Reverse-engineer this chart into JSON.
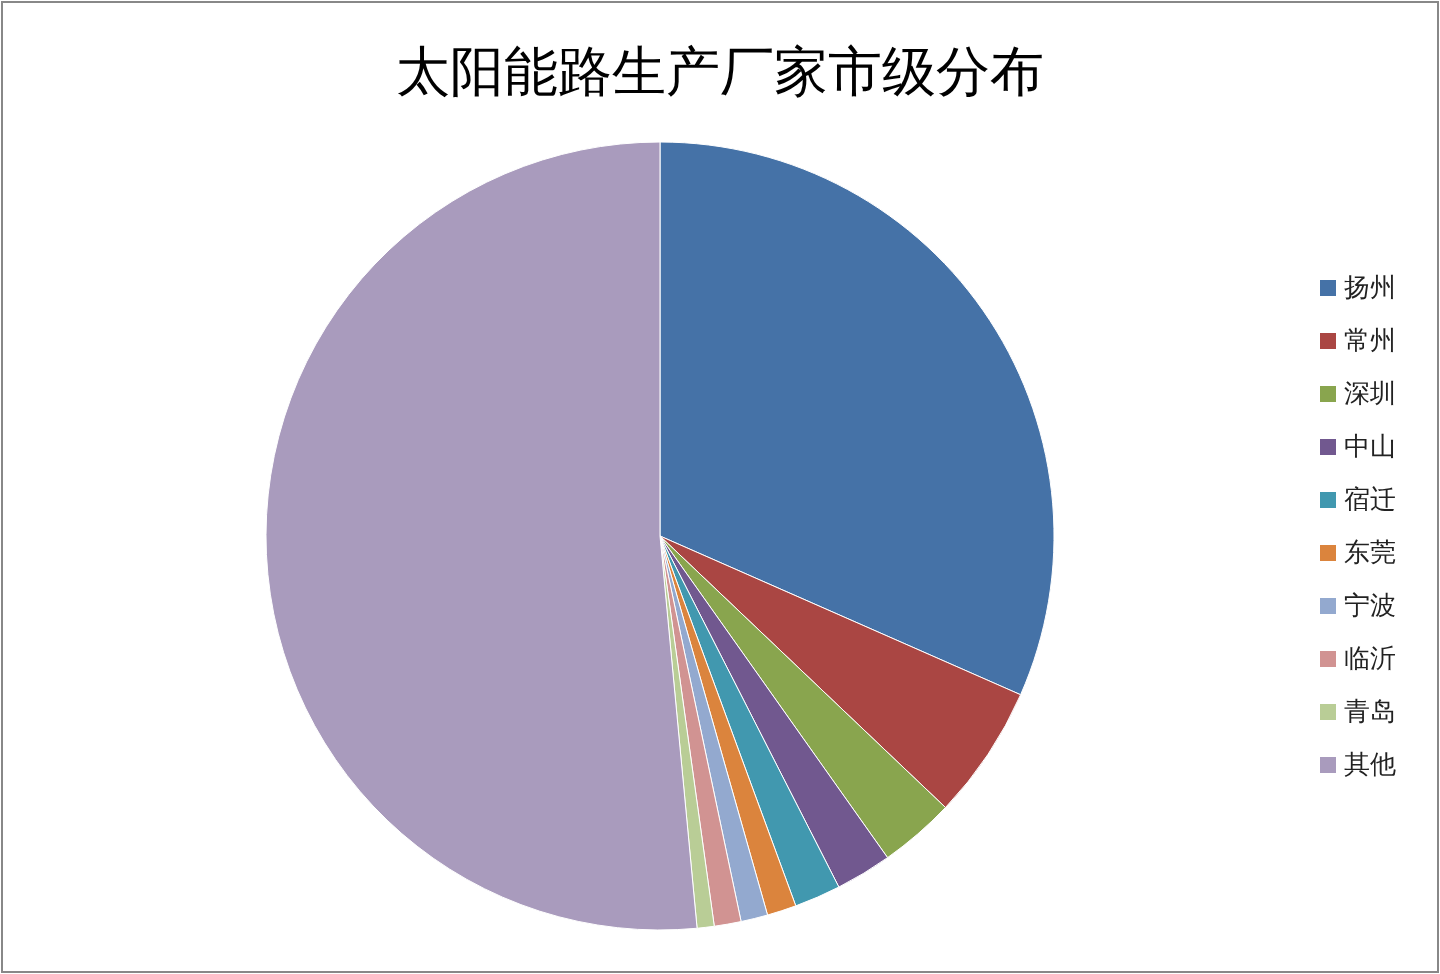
{
  "chart_data": {
    "type": "pie",
    "title": "太阳能路生产厂家市级分布",
    "legend": "right",
    "categories": [
      "扬州",
      "常州",
      "深圳",
      "中山",
      "宿迁",
      "东莞",
      "宁波",
      "临沂",
      "青岛",
      "其他"
    ],
    "values": [
      31.6,
      5.5,
      3.1,
      2.3,
      1.9,
      1.2,
      1.1,
      1.1,
      0.7,
      51.5
    ],
    "colors": [
      "#4572a7",
      "#aa4643",
      "#89a54e",
      "#71588f",
      "#4198af",
      "#db843d",
      "#93a9cf",
      "#d19392",
      "#b9cd96",
      "#a99bbd"
    ]
  }
}
